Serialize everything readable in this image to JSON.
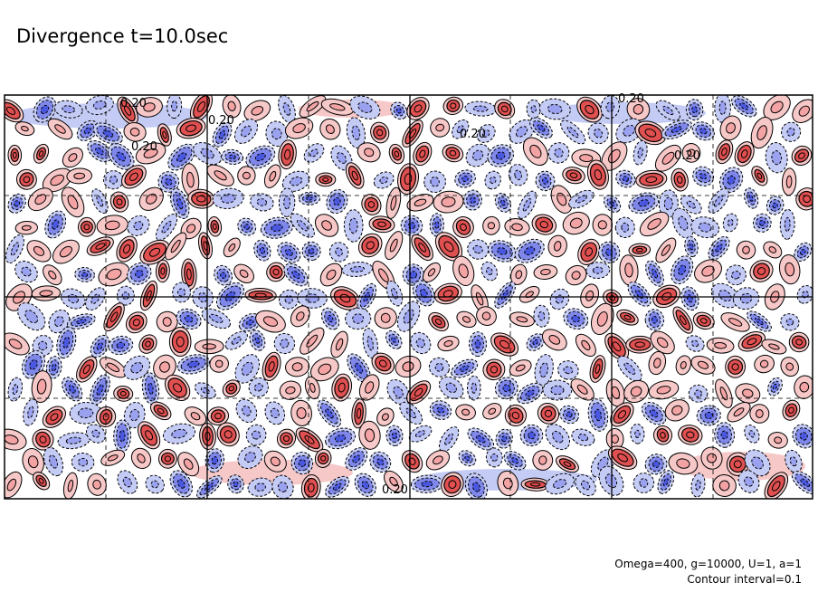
{
  "title": "Divergence t=10.0sec",
  "footnote": {
    "params": "Omega=400, g=10000, U=1, a=1",
    "contour": "Contour interval=0.1"
  },
  "contour_labels": [
    "0.20",
    "0.20",
    "0.20",
    "0.20",
    "0.20",
    "0.20",
    "0.20"
  ],
  "colors": {
    "positive_fill": "#e05050",
    "positive_light": "#f6c8c8",
    "negative_fill": "#4a58e0",
    "negative_light": "#c4cbf5",
    "contour_line": "#000000"
  }
}
